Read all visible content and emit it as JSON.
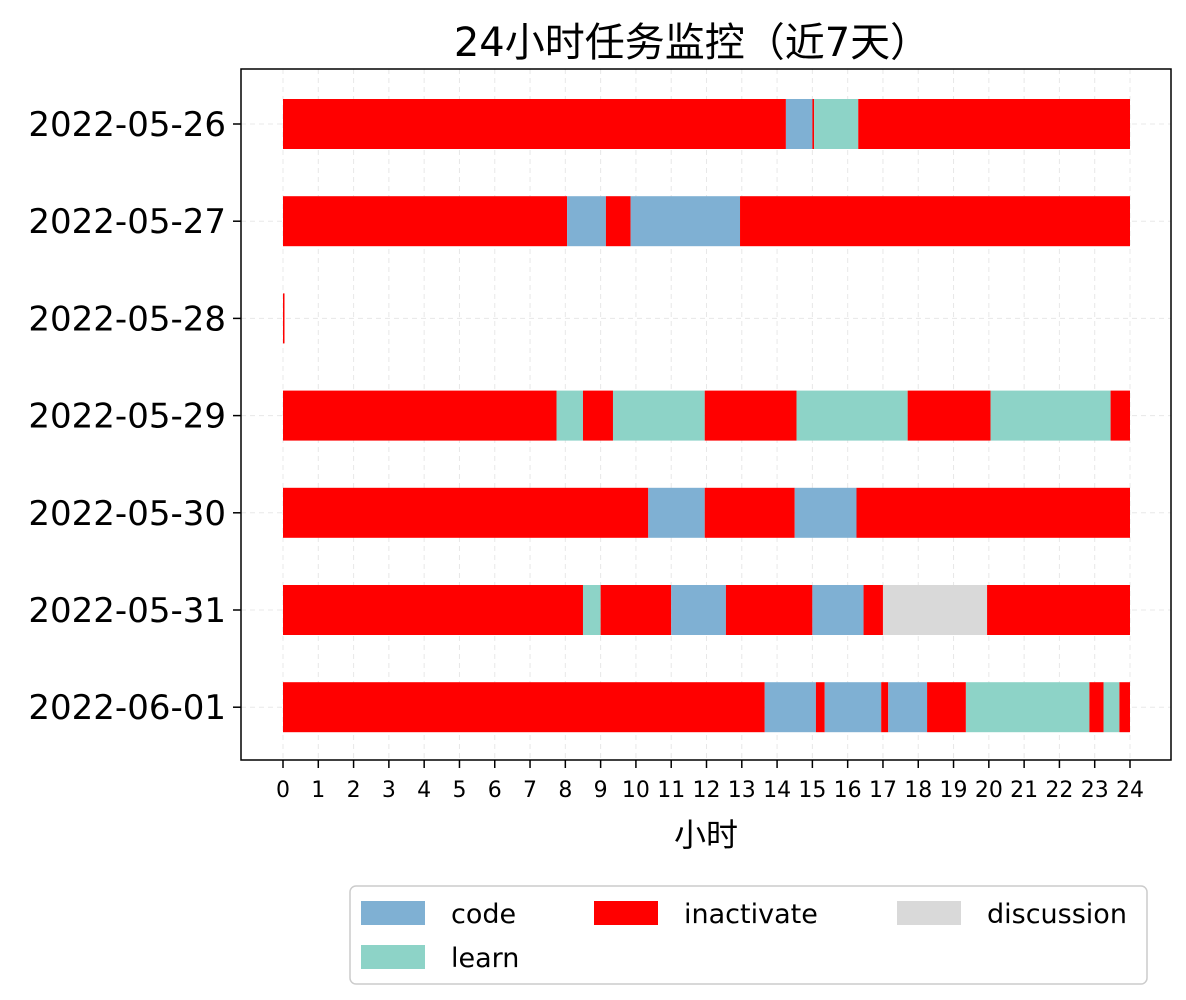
{
  "chart_data": {
    "type": "bar",
    "orientation": "horizontal-stacked-timeline",
    "title": "24小时任务监控（近7天）",
    "xlabel": "小时",
    "ylabel": "",
    "xlim": [
      0,
      24
    ],
    "xticks": [
      0,
      1,
      2,
      3,
      4,
      5,
      6,
      7,
      8,
      9,
      10,
      11,
      12,
      13,
      14,
      15,
      16,
      17,
      18,
      19,
      20,
      21,
      22,
      23,
      24
    ],
    "grid": true,
    "legend_position": "bottom",
    "categories": [
      "code",
      "inactivate",
      "discussion",
      "learn"
    ],
    "colors": {
      "code": "#7fb0d3",
      "learn": "#8dd3c7",
      "inactivate": "#ff0000",
      "discussion": "#d9d9d9"
    },
    "legend": [
      {
        "key": "code",
        "label": "code"
      },
      {
        "key": "inactivate",
        "label": "inactivate"
      },
      {
        "key": "discussion",
        "label": "discussion"
      },
      {
        "key": "learn",
        "label": "learn"
      }
    ],
    "rows": [
      {
        "date": "2022-05-26",
        "segments": [
          {
            "cat": "inactivate",
            "start": 0,
            "end": 14.25
          },
          {
            "cat": "code",
            "start": 14.25,
            "end": 15.0
          },
          {
            "cat": "inactivate",
            "start": 15.0,
            "end": 15.05
          },
          {
            "cat": "learn",
            "start": 15.05,
            "end": 16.3
          },
          {
            "cat": "inactivate",
            "start": 16.3,
            "end": 24
          }
        ]
      },
      {
        "date": "2022-05-27",
        "segments": [
          {
            "cat": "inactivate",
            "start": 0,
            "end": 8.05
          },
          {
            "cat": "code",
            "start": 8.05,
            "end": 9.15
          },
          {
            "cat": "inactivate",
            "start": 9.15,
            "end": 9.85
          },
          {
            "cat": "code",
            "start": 9.85,
            "end": 12.95
          },
          {
            "cat": "inactivate",
            "start": 12.95,
            "end": 24
          }
        ]
      },
      {
        "date": "2022-05-28",
        "segments": [
          {
            "cat": "inactivate",
            "start": 0,
            "end": 0.04
          }
        ]
      },
      {
        "date": "2022-05-29",
        "segments": [
          {
            "cat": "inactivate",
            "start": 0,
            "end": 7.75
          },
          {
            "cat": "learn",
            "start": 7.75,
            "end": 8.5
          },
          {
            "cat": "inactivate",
            "start": 8.5,
            "end": 9.35
          },
          {
            "cat": "learn",
            "start": 9.35,
            "end": 11.95
          },
          {
            "cat": "inactivate",
            "start": 11.95,
            "end": 14.55
          },
          {
            "cat": "learn",
            "start": 14.55,
            "end": 17.7
          },
          {
            "cat": "inactivate",
            "start": 17.7,
            "end": 20.05
          },
          {
            "cat": "learn",
            "start": 20.05,
            "end": 23.45
          },
          {
            "cat": "inactivate",
            "start": 23.45,
            "end": 24
          }
        ]
      },
      {
        "date": "2022-05-30",
        "segments": [
          {
            "cat": "inactivate",
            "start": 0,
            "end": 10.35
          },
          {
            "cat": "code",
            "start": 10.35,
            "end": 11.95
          },
          {
            "cat": "inactivate",
            "start": 11.95,
            "end": 14.5
          },
          {
            "cat": "code",
            "start": 14.5,
            "end": 16.25
          },
          {
            "cat": "inactivate",
            "start": 16.25,
            "end": 24
          }
        ]
      },
      {
        "date": "2022-05-31",
        "segments": [
          {
            "cat": "inactivate",
            "start": 0,
            "end": 8.5
          },
          {
            "cat": "learn",
            "start": 8.5,
            "end": 9.0
          },
          {
            "cat": "inactivate",
            "start": 9.0,
            "end": 11.0
          },
          {
            "cat": "code",
            "start": 11.0,
            "end": 12.55
          },
          {
            "cat": "inactivate",
            "start": 12.55,
            "end": 15.0
          },
          {
            "cat": "code",
            "start": 15.0,
            "end": 16.45
          },
          {
            "cat": "inactivate",
            "start": 16.45,
            "end": 17.0
          },
          {
            "cat": "discussion",
            "start": 17.0,
            "end": 19.95
          },
          {
            "cat": "inactivate",
            "start": 19.95,
            "end": 24
          }
        ]
      },
      {
        "date": "2022-06-01",
        "segments": [
          {
            "cat": "inactivate",
            "start": 0,
            "end": 13.65
          },
          {
            "cat": "code",
            "start": 13.65,
            "end": 15.1
          },
          {
            "cat": "inactivate",
            "start": 15.1,
            "end": 15.35
          },
          {
            "cat": "code",
            "start": 15.35,
            "end": 16.95
          },
          {
            "cat": "inactivate",
            "start": 16.95,
            "end": 17.15
          },
          {
            "cat": "code",
            "start": 17.15,
            "end": 18.25
          },
          {
            "cat": "inactivate",
            "start": 18.25,
            "end": 19.35
          },
          {
            "cat": "learn",
            "start": 19.35,
            "end": 22.85
          },
          {
            "cat": "inactivate",
            "start": 22.85,
            "end": 23.25
          },
          {
            "cat": "learn",
            "start": 23.25,
            "end": 23.7
          },
          {
            "cat": "inactivate",
            "start": 23.7,
            "end": 24
          }
        ]
      }
    ]
  }
}
